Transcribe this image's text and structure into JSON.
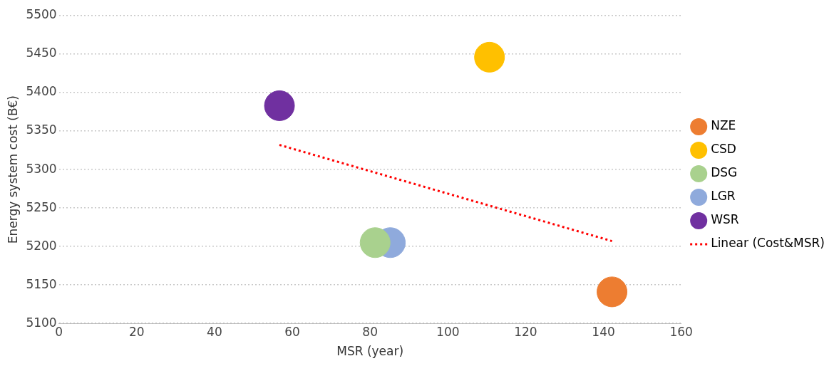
{
  "chart_data": {
    "type": "bubble",
    "xlabel": "MSR (year)",
    "ylabel": "Energy system cost (B€)",
    "xlim": [
      0,
      160
    ],
    "xticks": [
      0,
      20,
      40,
      60,
      80,
      100,
      120,
      140,
      160
    ],
    "ylim": [
      5100,
      5500
    ],
    "yticks": [
      5100,
      5150,
      5200,
      5250,
      5300,
      5350,
      5400,
      5450,
      5500
    ],
    "grid": "y",
    "legend": "right",
    "series": [
      {
        "name": "NZE",
        "color": "#ed7d31",
        "x": [
          142.2
        ],
        "values": [
          5141
        ],
        "sizes": [
          1
        ]
      },
      {
        "name": "CSD",
        "color": "#ffc000",
        "x": [
          110.7
        ],
        "values": [
          5446
        ],
        "sizes": [
          1
        ]
      },
      {
        "name": "DSG",
        "color": "#a9d18e",
        "x": [
          81.3
        ],
        "values": [
          5205
        ],
        "sizes": [
          1
        ]
      },
      {
        "name": "LGR",
        "color": "#8faadc",
        "x": [
          85.2
        ],
        "values": [
          5205
        ],
        "sizes": [
          1
        ]
      },
      {
        "name": "WSR",
        "color": "#7030a0",
        "x": [
          56.7
        ],
        "values": [
          5383
        ],
        "sizes": [
          1
        ]
      },
      {
        "name": "Linear (Cost&MSR)",
        "type": "line",
        "color": "#ff0000",
        "line_style": "dotted",
        "marker": "none",
        "x": [
          56.7,
          142.2
        ],
        "values": [
          5332,
          5207
        ]
      }
    ]
  }
}
